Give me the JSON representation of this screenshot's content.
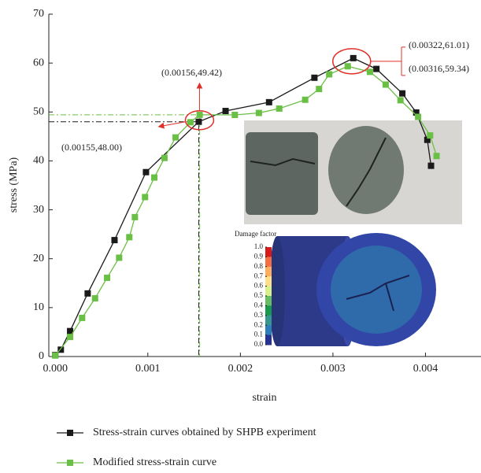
{
  "chart_data": {
    "type": "line",
    "x_label": "strain",
    "y_label": "stress (MPa)",
    "xlim": [
      -7e-05,
      0.0046
    ],
    "ylim": [
      0,
      70
    ],
    "xticks": [
      {
        "value": 0,
        "label": "0.000"
      },
      0.001,
      0.002,
      0.003,
      0.004
    ],
    "yticks": [
      0,
      10,
      20,
      30,
      40,
      50,
      60,
      70
    ],
    "series": [
      {
        "name": "Stress-strain curves obtained by SHPB experiment",
        "color": "#1a1a1a",
        "x": [
          0,
          6e-05,
          0.00016,
          0.00035,
          0.00064,
          0.00098,
          0.00155,
          0.00184,
          0.00231,
          0.0028,
          0.00322,
          0.00347,
          0.00375,
          0.0039,
          0.00402,
          0.00406
        ],
        "values": [
          0.3,
          1.4,
          5.2,
          12.9,
          23.8,
          37.7,
          48.0,
          50.2,
          52.0,
          57.0,
          61.01,
          58.8,
          53.8,
          49.9,
          44.3,
          39.0
        ]
      },
      {
        "name": "Modified stress-strain curve",
        "color": "#6abf45",
        "x": [
          0,
          0.00016,
          0.00029,
          0.00043,
          0.00056,
          0.00069,
          0.0008,
          0.00086,
          0.00097,
          0.00107,
          0.00118,
          0.0013,
          0.00146,
          0.00156,
          0.00194,
          0.0022,
          0.00242,
          0.0027,
          0.00285,
          0.00296,
          0.00316,
          0.0034,
          0.00357,
          0.00373,
          0.00392,
          0.00405,
          0.00412
        ],
        "values": [
          0.2,
          4.0,
          7.9,
          11.9,
          16.1,
          20.2,
          24.4,
          28.5,
          32.6,
          36.6,
          40.6,
          44.8,
          47.9,
          49.42,
          49.4,
          49.8,
          50.7,
          52.5,
          54.7,
          57.7,
          59.34,
          58.2,
          55.6,
          52.4,
          49.0,
          45.2,
          41.0
        ]
      }
    ],
    "annotations": [
      {
        "text": "(0.00155,48.00)",
        "x": 0.00155,
        "y": 48.0,
        "color": "#1a1a1a"
      },
      {
        "text": "(0.00156,49.42)",
        "x": 0.00156,
        "y": 49.42,
        "color": "#6abf45"
      },
      {
        "text": "(0.00322,61.01)",
        "x": 0.00322,
        "y": 61.01,
        "color": "#1a1a1a"
      },
      {
        "text": "(0.00316,59.34)",
        "x": 0.00316,
        "y": 59.34,
        "color": "#6abf45"
      }
    ],
    "colorbar": {
      "title": "Damage factor",
      "ticks": [
        {
          "value": 1,
          "label": "1.0"
        },
        0.9,
        0.8,
        0.7,
        0.6,
        0.5,
        0.4,
        0.3,
        0.2,
        0.1,
        {
          "value": 0,
          "label": "0.0"
        }
      ]
    }
  }
}
